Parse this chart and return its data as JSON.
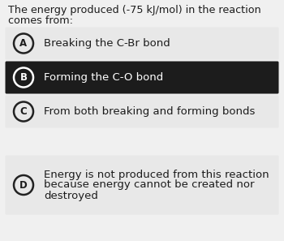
{
  "title_line1": "The energy produced (-75 kJ/mol) in the reaction",
  "title_line2": "comes from:",
  "options": [
    {
      "letter": "A",
      "text": "Breaking the C-Br bond",
      "selected": false,
      "lines": [
        "Breaking the C-Br bond"
      ]
    },
    {
      "letter": "B",
      "text": "Forming the C-O bond",
      "selected": true,
      "lines": [
        "Forming the C-O bond"
      ]
    },
    {
      "letter": "C",
      "text": "From both breaking and forming bonds",
      "selected": false,
      "lines": [
        "From both breaking and forming bonds"
      ]
    },
    {
      "letter": "D",
      "text": "Energy is not produced from this reaction\nbecause energy cannot be created nor\ndestroyed",
      "selected": false,
      "lines": [
        "Energy is not produced from this reaction",
        "because energy cannot be created nor",
        "destroyed"
      ]
    }
  ],
  "fig_bg": "#f0f0f0",
  "selected_bg": "#1c1c1c",
  "unselected_bg": "#e8e8e8",
  "gap_color": "#f0f0f0",
  "selected_text_color": "#ffffff",
  "unselected_text_color": "#1c1c1c",
  "title_color": "#1c1c1c",
  "title_fontsize": 9.2,
  "option_fontsize": 9.5,
  "letter_fontsize": 8.5
}
